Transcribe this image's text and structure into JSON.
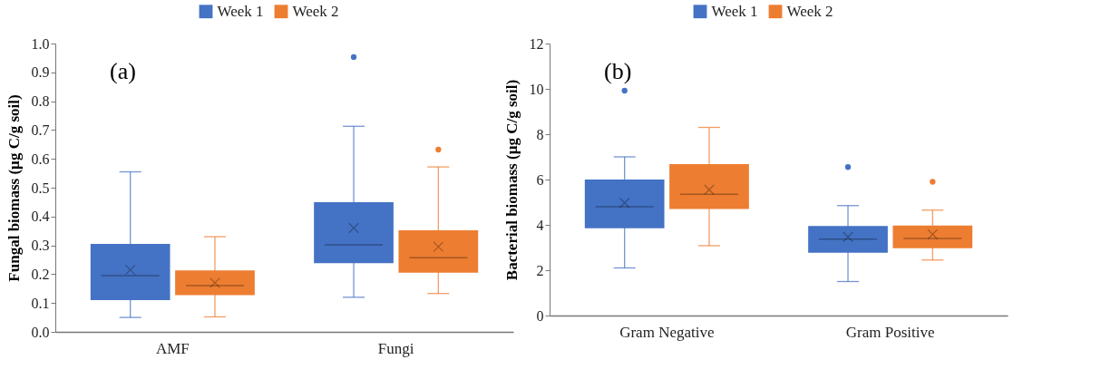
{
  "chart_data": [
    {
      "type": "box",
      "ylabel": "Fungal biomass (µg C/g soil)",
      "annotations": [
        "(a)"
      ],
      "legend": "top",
      "categories": [
        "AMF",
        "Fungi"
      ],
      "ylim": [
        0,
        1
      ],
      "yticks": [
        {
          "value": 0,
          "label": "0.0"
        },
        0.1,
        0.2,
        0.3,
        0.4,
        0.5,
        0.6,
        0.7,
        0.8,
        0.9,
        {
          "value": 1,
          "label": "1.0"
        }
      ],
      "series": [
        {
          "name": "Week 1",
          "color": "#4472c4",
          "boxes": [
            {
              "low": 0.05,
              "q1": 0.11,
              "median": 0.195,
              "q3": 0.305,
              "high": 0.555,
              "mean": 0.215
            },
            {
              "low": 0.12,
              "q1": 0.238,
              "median": 0.302,
              "q3": 0.45,
              "high": 0.713,
              "mean": 0.36,
              "outliers": [
                0.953
              ]
            }
          ]
        },
        {
          "name": "Week 2",
          "color": "#ed7d31",
          "boxes": [
            {
              "low": 0.052,
              "q1": 0.127,
              "median": 0.16,
              "q3": 0.213,
              "high": 0.33,
              "mean": 0.17
            },
            {
              "low": 0.133,
              "q1": 0.205,
              "median": 0.257,
              "q3": 0.352,
              "high": 0.572,
              "mean": 0.295,
              "outliers": [
                0.632
              ]
            }
          ]
        }
      ]
    },
    {
      "type": "box",
      "ylabel": "Bacterial biomass (µg C/g soil)",
      "annotations": [
        "(b)"
      ],
      "legend": "top",
      "categories": [
        "Gram Negative",
        "Gram Positive"
      ],
      "ylim": [
        0,
        12
      ],
      "yticks": [
        0,
        2,
        4,
        6,
        8,
        10,
        12
      ],
      "series": [
        {
          "name": "Week 1",
          "color": "#4472c4",
          "boxes": [
            {
              "low": 2.1,
              "q1": 3.85,
              "median": 4.8,
              "q3": 6.0,
              "high": 7.0,
              "mean": 4.97,
              "outliers": [
                9.92
              ]
            },
            {
              "low": 1.5,
              "q1": 2.77,
              "median": 3.37,
              "q3": 3.95,
              "high": 4.85,
              "mean": 3.47,
              "outliers": [
                6.55
              ]
            }
          ]
        },
        {
          "name": "Week 2",
          "color": "#ed7d31",
          "boxes": [
            {
              "low": 3.08,
              "q1": 4.7,
              "median": 5.35,
              "q3": 6.68,
              "high": 8.3,
              "mean": 5.55
            },
            {
              "low": 2.45,
              "q1": 2.97,
              "median": 3.4,
              "q3": 3.97,
              "high": 4.65,
              "mean": 3.58,
              "outliers": [
                5.9
              ]
            }
          ]
        }
      ]
    }
  ]
}
